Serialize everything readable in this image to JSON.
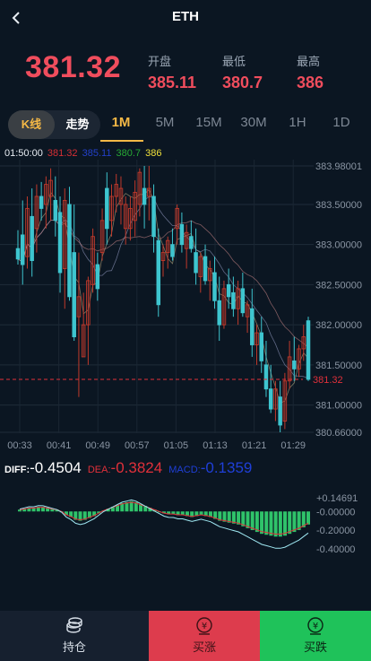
{
  "header": {
    "title": "ETH",
    "back_icon": "chevron-left-icon"
  },
  "price": "381.32",
  "stats": [
    {
      "label": "开盘",
      "value": "385.11"
    },
    {
      "label": "最低",
      "value": "380.7"
    },
    {
      "label": "最高",
      "value": "386"
    }
  ],
  "tabs": {
    "kline_label": "K线",
    "trend_label": "走势",
    "timeframes": [
      "1M",
      "5M",
      "15M",
      "30M",
      "1H",
      "1D"
    ],
    "active_timeframe": "1M"
  },
  "legend": {
    "time": "01:50:00",
    "close": "381.32",
    "open": "385.11",
    "low": "380.7",
    "high": "386"
  },
  "price_axis": [
    "383.98001",
    "383.50000",
    "383.00000",
    "382.50000",
    "382.00000",
    "381.50000",
    "381.00000",
    "380.66000"
  ],
  "time_axis": [
    "00:33",
    "00:41",
    "00:49",
    "00:57",
    "01:05",
    "01:13",
    "01:21",
    "01:29"
  ],
  "current_price_tag": "381.32",
  "macd": {
    "diff_label": "DIFF:",
    "diff_value": "-0.4504",
    "dea_label": "DEA:",
    "dea_value": "-0.3824",
    "macd_label": "MACD:",
    "macd_value": "-0.1359",
    "axis": [
      "+0.14691",
      "-0.00000",
      "-0.20000",
      "-0.40000"
    ]
  },
  "bottom": {
    "hold_label": "持仓",
    "hold_icon": "coins-stack-icon",
    "buy_up_label": "买涨",
    "buy_up_icon": "yen-coin-icon",
    "buy_down_label": "买跌",
    "buy_down_icon": "yen-coin-icon"
  },
  "colors": {
    "up": "#f04d5d",
    "down": "#1fc25a",
    "accent": "#f5b946",
    "candle_up": "#c0392b",
    "candle_down": "#3ec5cf",
    "dea_color": "#e0303a",
    "macd_color": "#1f3fd8"
  },
  "chart_data": {
    "type": "candlestick",
    "x_range": [
      "00:33",
      "01:29"
    ],
    "ylim": [
      380.66,
      383.98001
    ],
    "candles": [
      {
        "o": 382.95,
        "h": 383.18,
        "l": 382.75,
        "c": 382.82
      },
      {
        "o": 383.12,
        "h": 383.55,
        "l": 382.5,
        "c": 382.75
      },
      {
        "o": 382.85,
        "h": 383.6,
        "l": 382.7,
        "c": 383.45
      },
      {
        "o": 383.35,
        "h": 383.7,
        "l": 382.6,
        "c": 382.8
      },
      {
        "o": 383.2,
        "h": 383.75,
        "l": 382.9,
        "c": 383.6
      },
      {
        "o": 383.6,
        "h": 383.78,
        "l": 383.3,
        "c": 383.45
      },
      {
        "o": 383.5,
        "h": 383.85,
        "l": 383.2,
        "c": 383.75
      },
      {
        "o": 383.6,
        "h": 383.95,
        "l": 383.3,
        "c": 383.8
      },
      {
        "o": 383.55,
        "h": 383.85,
        "l": 383.1,
        "c": 383.3
      },
      {
        "o": 383.4,
        "h": 383.6,
        "l": 382.4,
        "c": 382.65
      },
      {
        "o": 382.7,
        "h": 383.7,
        "l": 382.2,
        "c": 383.55
      },
      {
        "o": 383.5,
        "h": 383.72,
        "l": 382.3,
        "c": 382.35
      },
      {
        "o": 382.9,
        "h": 383.5,
        "l": 381.8,
        "c": 381.85
      },
      {
        "o": 382.1,
        "h": 382.9,
        "l": 381.1,
        "c": 382.35
      },
      {
        "o": 381.6,
        "h": 382.4,
        "l": 381.6,
        "c": 382.0
      },
      {
        "o": 382.0,
        "h": 382.6,
        "l": 381.5,
        "c": 382.55
      },
      {
        "o": 382.5,
        "h": 383.2,
        "l": 382.4,
        "c": 383.1
      },
      {
        "o": 382.75,
        "h": 382.9,
        "l": 382.3,
        "c": 382.45
      },
      {
        "o": 382.9,
        "h": 383.45,
        "l": 382.8,
        "c": 383.3
      },
      {
        "o": 383.7,
        "h": 383.9,
        "l": 383.0,
        "c": 383.2
      },
      {
        "o": 383.3,
        "h": 383.75,
        "l": 383.1,
        "c": 383.6
      },
      {
        "o": 383.6,
        "h": 383.88,
        "l": 383.4,
        "c": 383.75
      },
      {
        "o": 383.5,
        "h": 383.85,
        "l": 383.25,
        "c": 383.7
      },
      {
        "o": 383.2,
        "h": 383.6,
        "l": 383.0,
        "c": 383.5
      },
      {
        "o": 383.2,
        "h": 383.6,
        "l": 383.05,
        "c": 383.45
      },
      {
        "o": 383.3,
        "h": 383.8,
        "l": 383.1,
        "c": 383.65
      },
      {
        "o": 383.5,
        "h": 383.95,
        "l": 383.35,
        "c": 383.9
      },
      {
        "o": 383.7,
        "h": 383.98,
        "l": 383.2,
        "c": 383.5
      },
      {
        "o": 383.6,
        "h": 383.98,
        "l": 383.3,
        "c": 383.7
      },
      {
        "o": 383.6,
        "h": 383.75,
        "l": 382.9,
        "c": 383.1
      },
      {
        "o": 383.05,
        "h": 383.2,
        "l": 382.1,
        "c": 382.25
      },
      {
        "o": 382.8,
        "h": 383.0,
        "l": 382.6,
        "c": 382.9
      },
      {
        "o": 382.9,
        "h": 383.1,
        "l": 382.7,
        "c": 383.05
      },
      {
        "o": 383.0,
        "h": 383.2,
        "l": 382.8,
        "c": 382.85
      },
      {
        "o": 383.2,
        "h": 383.5,
        "l": 383.0,
        "c": 383.45
      },
      {
        "o": 383.25,
        "h": 383.4,
        "l": 382.9,
        "c": 383.0
      },
      {
        "o": 382.95,
        "h": 383.25,
        "l": 382.7,
        "c": 383.15
      },
      {
        "o": 383.1,
        "h": 383.3,
        "l": 382.9,
        "c": 382.95
      },
      {
        "o": 382.9,
        "h": 383.2,
        "l": 382.5,
        "c": 382.65
      },
      {
        "o": 382.6,
        "h": 382.9,
        "l": 382.4,
        "c": 382.85
      },
      {
        "o": 382.85,
        "h": 383.0,
        "l": 382.5,
        "c": 382.55
      },
      {
        "o": 382.55,
        "h": 382.8,
        "l": 382.3,
        "c": 382.7
      },
      {
        "o": 382.65,
        "h": 382.85,
        "l": 382.2,
        "c": 382.3
      },
      {
        "o": 382.3,
        "h": 382.6,
        "l": 381.8,
        "c": 382.0
      },
      {
        "o": 382.0,
        "h": 382.55,
        "l": 381.95,
        "c": 382.45
      },
      {
        "o": 382.5,
        "h": 382.7,
        "l": 382.2,
        "c": 382.35
      },
      {
        "o": 382.4,
        "h": 382.6,
        "l": 382.1,
        "c": 382.2
      },
      {
        "o": 382.2,
        "h": 382.55,
        "l": 382.0,
        "c": 382.45
      },
      {
        "o": 382.45,
        "h": 382.65,
        "l": 382.1,
        "c": 382.15
      },
      {
        "o": 382.1,
        "h": 382.3,
        "l": 381.9,
        "c": 382.25
      },
      {
        "o": 382.2,
        "h": 382.45,
        "l": 381.6,
        "c": 381.75
      },
      {
        "o": 381.75,
        "h": 382.0,
        "l": 381.5,
        "c": 381.9
      },
      {
        "o": 381.9,
        "h": 382.1,
        "l": 381.4,
        "c": 381.55
      },
      {
        "o": 381.5,
        "h": 381.8,
        "l": 381.1,
        "c": 381.2
      },
      {
        "o": 381.2,
        "h": 381.5,
        "l": 380.9,
        "c": 380.95
      },
      {
        "o": 380.95,
        "h": 381.3,
        "l": 380.8,
        "c": 381.2
      },
      {
        "o": 381.1,
        "h": 381.3,
        "l": 380.66,
        "c": 380.75
      },
      {
        "o": 380.8,
        "h": 381.4,
        "l": 380.7,
        "c": 381.3
      },
      {
        "o": 381.3,
        "h": 381.8,
        "l": 381.2,
        "c": 381.6
      },
      {
        "o": 381.55,
        "h": 381.85,
        "l": 381.3,
        "c": 381.45
      },
      {
        "o": 381.45,
        "h": 381.75,
        "l": 381.35,
        "c": 381.7
      },
      {
        "o": 381.7,
        "h": 382.0,
        "l": 381.55,
        "c": 381.85
      },
      {
        "o": 382.05,
        "h": 382.1,
        "l": 381.3,
        "c": 381.32
      }
    ],
    "macd_bars": [
      0.02,
      0.03,
      0.04,
      0.04,
      0.05,
      0.05,
      0.04,
      0.03,
      0.02,
      0.0,
      -0.04,
      -0.06,
      -0.09,
      -0.1,
      -0.09,
      -0.07,
      -0.05,
      -0.02,
      0.01,
      0.03,
      0.05,
      0.07,
      0.09,
      0.1,
      0.11,
      0.1,
      0.08,
      0.06,
      0.04,
      0.02,
      0.0,
      -0.02,
      -0.03,
      -0.03,
      -0.04,
      -0.04,
      -0.05,
      -0.06,
      -0.05,
      -0.04,
      -0.05,
      -0.06,
      -0.08,
      -0.1,
      -0.11,
      -0.12,
      -0.13,
      -0.14,
      -0.16,
      -0.18,
      -0.2,
      -0.22,
      -0.24,
      -0.25,
      -0.26,
      -0.27,
      -0.27,
      -0.26,
      -0.24,
      -0.22,
      -0.2,
      -0.17,
      -0.14
    ],
    "macd_range": [
      -0.45,
      0.14691
    ]
  }
}
